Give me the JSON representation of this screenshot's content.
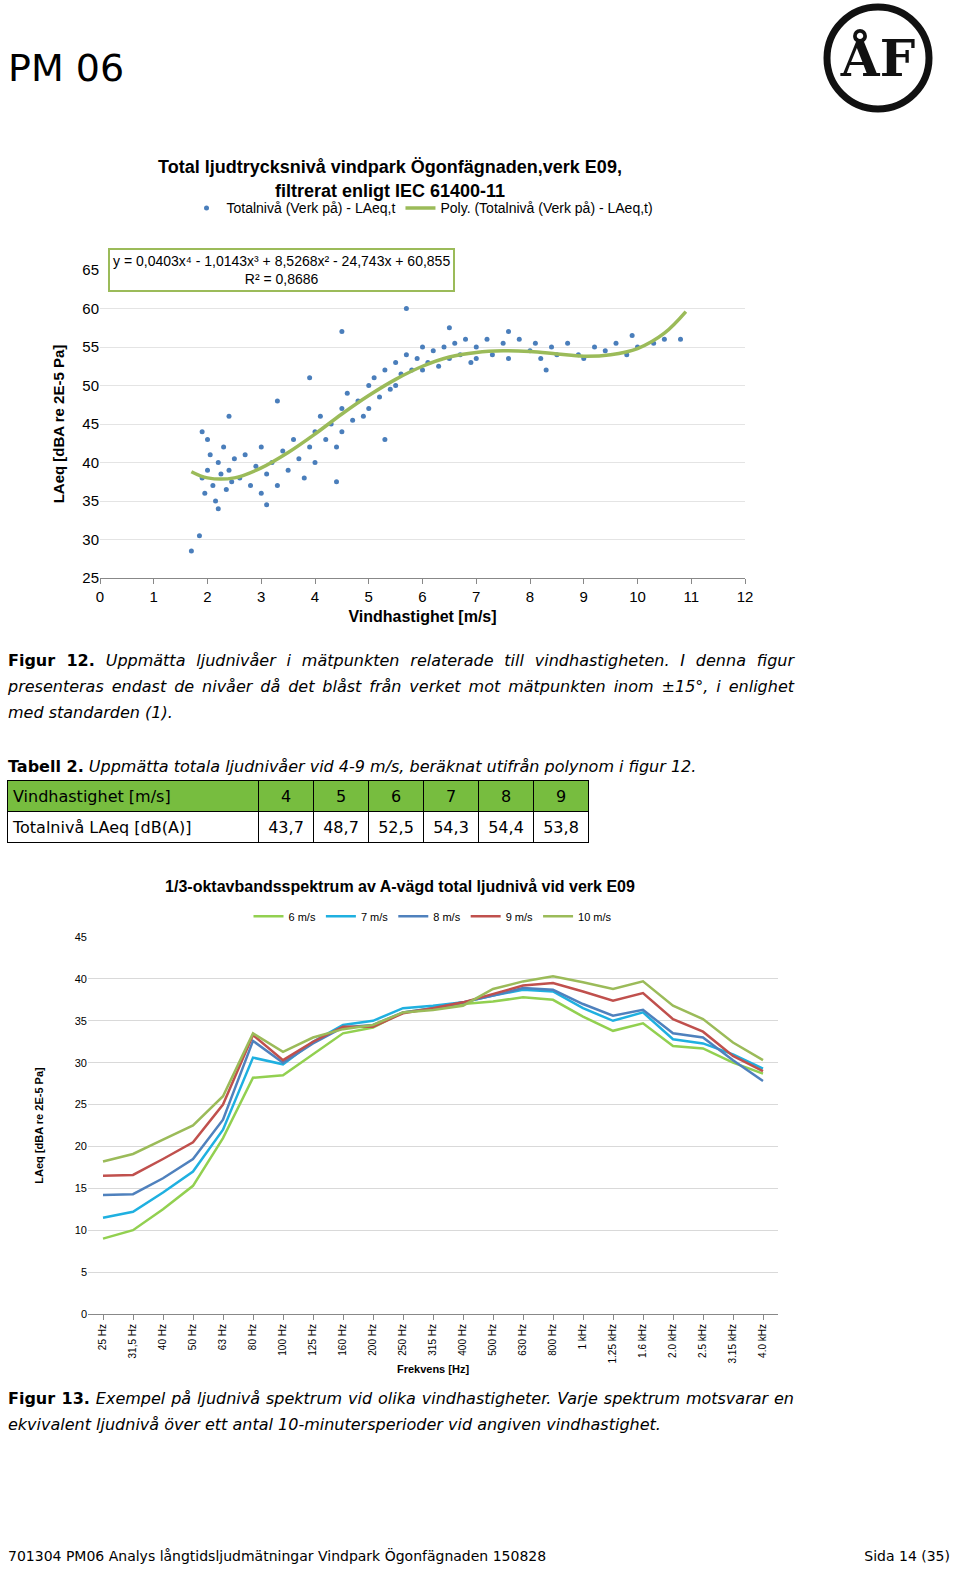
{
  "header": {
    "title": "PM 06",
    "logo": "ÅF"
  },
  "chart_data": [
    {
      "type": "scatter",
      "title": "Total ljudtrycksnivå vindpark Ögonfägnaden,verk E09,\nfiltrerat enligt IEC 61400-11",
      "x_label": "Vindhastighet [m/s]",
      "y_label": "LAeq [dBA re 2E-5 Pa]",
      "xlim": [
        0,
        12
      ],
      "xticks": [
        0,
        1,
        2,
        3,
        4,
        5,
        6,
        7,
        8,
        9,
        10,
        11,
        12
      ],
      "ylim": [
        25,
        65
      ],
      "yticks": [
        25,
        30,
        35,
        40,
        45,
        50,
        55,
        60,
        65
      ],
      "grid": "y",
      "legend": "top",
      "annotations": [
        {
          "text": "y = 0,0403x⁴ - 1,0143x³ + 8,5268x² - 24,743x + 60,855\nR² = 0,8686"
        }
      ],
      "series": [
        {
          "name": "Totalnivå (Verk på) - LAeq,t",
          "type": "scatter",
          "marker": "circle",
          "color": "#4a7ebb",
          "x": [
            1.7,
            1.85,
            1.9,
            1.9,
            1.95,
            2.0,
            2.0,
            2.05,
            2.1,
            2.15,
            2.2,
            2.2,
            2.25,
            2.3,
            2.35,
            2.4,
            2.4,
            2.45,
            2.5,
            2.6,
            2.7,
            2.8,
            2.9,
            3.0,
            3.0,
            3.1,
            3.1,
            3.2,
            3.3,
            3.3,
            3.4,
            3.5,
            3.6,
            3.7,
            3.8,
            3.9,
            3.9,
            4.0,
            4.0,
            4.1,
            4.2,
            4.3,
            4.4,
            4.4,
            4.5,
            4.5,
            4.5,
            4.6,
            4.7,
            4.8,
            4.9,
            5.0,
            5.0,
            5.1,
            5.2,
            5.3,
            5.3,
            5.4,
            5.5,
            5.5,
            5.6,
            5.7,
            5.7,
            5.8,
            5.9,
            6.0,
            6.0,
            6.1,
            6.2,
            6.3,
            6.4,
            6.5,
            6.5,
            6.6,
            6.7,
            6.8,
            6.9,
            7.0,
            7.0,
            7.2,
            7.3,
            7.5,
            7.6,
            7.6,
            7.8,
            8.0,
            8.1,
            8.2,
            8.3,
            8.4,
            8.5,
            8.7,
            8.9,
            9.0,
            9.2,
            9.4,
            9.6,
            9.8,
            9.9,
            10.0,
            10.3,
            10.5,
            10.8
          ],
          "values": [
            28.5,
            30.5,
            38,
            44,
            36,
            39,
            43,
            41,
            37,
            35,
            40,
            34,
            38.5,
            42,
            36.5,
            39,
            46,
            37.5,
            40.5,
            38,
            41,
            37,
            39.5,
            36,
            42,
            38.5,
            34.5,
            40,
            37,
            48,
            41.5,
            39,
            43,
            40.5,
            38,
            42,
            51,
            44,
            40,
            46,
            43,
            45,
            42,
            37.5,
            47,
            44,
            57,
            49,
            45.5,
            48,
            46,
            50,
            47,
            51,
            48.5,
            52,
            43,
            49.5,
            53,
            50,
            51.5,
            54,
            60,
            52,
            53.5,
            55,
            52,
            53,
            54.5,
            52.5,
            55,
            53.5,
            57.5,
            55.5,
            54,
            56,
            53,
            55,
            53.5,
            56,
            54,
            55.5,
            53.5,
            57,
            56,
            54.5,
            55.5,
            53.5,
            52,
            55,
            54,
            55.5,
            54,
            53.5,
            55,
            54.5,
            55.5,
            54,
            56.5,
            55,
            55.5,
            56,
            56
          ]
        },
        {
          "name": "Poly. (Totalnivå (Verk på) - LAeq,t)",
          "type": "line",
          "line_style": "solid",
          "color": "#9bbb59",
          "x": [
            1.7,
            2,
            2.5,
            3,
            3.5,
            4,
            4.5,
            5,
            5.5,
            6,
            6.5,
            7,
            7.5,
            8,
            8.5,
            9,
            9.5,
            10,
            10.5,
            10.9
          ],
          "values": [
            38.8,
            38.0,
            38.0,
            39.3,
            41.3,
            43.7,
            46.3,
            48.7,
            50.8,
            52.5,
            53.7,
            54.3,
            54.5,
            54.4,
            54.1,
            53.8,
            54.0,
            54.8,
            56.8,
            59.6
          ]
        }
      ]
    },
    {
      "type": "line",
      "title": "1/3-oktavbandsspektrum av A-vägd total ljudnivå vid verk E09",
      "x_label": "Frekvens [Hz]",
      "y_label": "LAeq [dBA re 2E-5 Pa]",
      "categories": [
        "25 Hz",
        "31,5 Hz",
        "40 Hz",
        "50 Hz",
        "63 Hz",
        "80 Hz",
        "100 Hz",
        "125 Hz",
        "160 Hz",
        "200 Hz",
        "250 Hz",
        "315 Hz",
        "400 Hz",
        "500 Hz",
        "630 Hz",
        "800 Hz",
        "1 kHz",
        "1.25 kHz",
        "1.6 kHz",
        "2.0 kHz",
        "2.5 kHz",
        "3.15 kHz",
        "4.0 kHz"
      ],
      "ylim": [
        0,
        45
      ],
      "yticks": [
        0,
        5,
        10,
        15,
        20,
        25,
        30,
        35,
        40,
        45
      ],
      "grid": "y",
      "legend": "top",
      "series": [
        {
          "name": "6 m/s",
          "color": "#92d050",
          "values": [
            9,
            10,
            12.5,
            15.3,
            21,
            28.2,
            28.5,
            31,
            33.5,
            34.2,
            36,
            36.5,
            37,
            37.3,
            37.8,
            37.5,
            35.5,
            33.8,
            34.7,
            32,
            31.7,
            30,
            28.7
          ]
        },
        {
          "name": "7 m/s",
          "color": "#1fb0e0",
          "values": [
            11.5,
            12.2,
            14.5,
            17,
            22,
            30.6,
            29.8,
            32.5,
            34.5,
            35,
            36.5,
            36.8,
            37.2,
            38,
            38.7,
            38.5,
            36.5,
            35,
            36,
            32.8,
            32.3,
            31,
            29.3
          ]
        },
        {
          "name": "8 m/s",
          "color": "#4f81bd",
          "values": [
            14.2,
            14.3,
            16.2,
            18.5,
            23.2,
            32.6,
            30,
            32.3,
            34.2,
            34.5,
            36,
            36.5,
            37.2,
            38,
            38.9,
            38.7,
            37,
            35.6,
            36.3,
            33.5,
            33,
            30.3,
            27.8
          ]
        },
        {
          "name": "9 m/s",
          "color": "#c0504d",
          "values": [
            16.5,
            16.6,
            18.5,
            20.5,
            25,
            33.3,
            30.3,
            32.5,
            34.3,
            34.3,
            35.9,
            36.5,
            37.2,
            38.2,
            39.2,
            39.5,
            38.5,
            37.4,
            38.3,
            35.2,
            33.7,
            30.8,
            29
          ]
        },
        {
          "name": "10 m/s",
          "color": "#9bbb59",
          "values": [
            18.2,
            19.1,
            20.8,
            22.5,
            26,
            33.5,
            31.3,
            33,
            34,
            34.5,
            36,
            36.3,
            36.8,
            38.8,
            39.7,
            40.3,
            39.6,
            38.8,
            39.7,
            36.8,
            35.2,
            32.4,
            30.3
          ]
        }
      ]
    }
  ],
  "figure12_caption": {
    "label": "Figur 12.",
    "text": "Uppmätta ljudnivåer i mätpunkten relaterade till vindhastigheten. I denna figur presenteras endast de nivåer då det blåst från verket mot mätpunkten inom ±15°, i enlighet med standarden (1)."
  },
  "table2": {
    "caption": {
      "label": "Tabell 2.",
      "text": "Uppmätta totala ljudnivåer vid 4-9 m/s, beräknat utifrån polynom i figur 12."
    },
    "rows": [
      [
        "Vindhastighet [m/s]",
        "4",
        "5",
        "6",
        "7",
        "8",
        "9"
      ],
      [
        "Totalnivå LAeq [dB(A)]",
        "43,7",
        "48,7",
        "52,5",
        "54,3",
        "54,4",
        "53,8"
      ]
    ]
  },
  "figure13_caption": {
    "label": "Figur 13.",
    "text": "Exempel på ljudnivå spektrum vid olika vindhastigheter. Varje spektrum motsvarar en ekvivalent ljudnivå över ett antal 10-minutersperioder vid angiven vindhastighet."
  },
  "footer": {
    "left": "701304 PM06 Analys långtidsljudmätningar Vindpark Ögonfägnaden 150828",
    "right": "Sida 14 (35)"
  }
}
